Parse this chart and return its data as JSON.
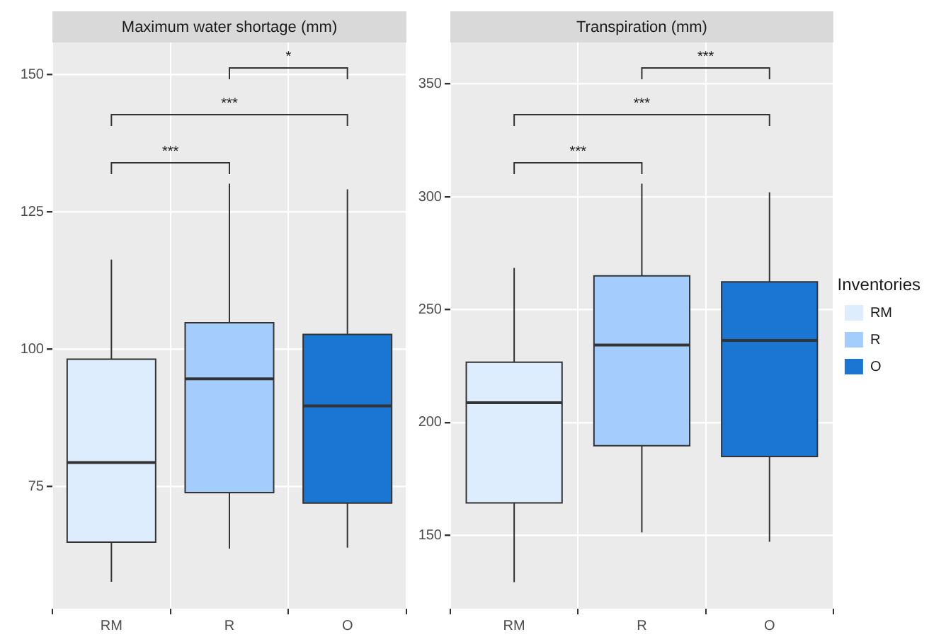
{
  "chart_data": [
    {
      "type": "box",
      "title": "Maximum water shortage (mm)",
      "categories": [
        "RM",
        "R",
        "O"
      ],
      "series": [
        {
          "color": "#ddedfd",
          "boxes": [
            {
              "low": 57.7,
              "q1": 64.9,
              "median": 79.4,
              "q3": 98.2,
              "high": 116.3
            },
            null,
            null
          ]
        },
        {
          "color": "#a4cdfd",
          "boxes": [
            null,
            {
              "low": 63.7,
              "q1": 73.9,
              "median": 94.6,
              "q3": 104.8,
              "high": 130.1
            },
            null
          ]
        },
        {
          "color": "#1b75d2",
          "boxes": [
            null,
            null,
            {
              "low": 63.9,
              "q1": 72,
              "median": 89.7,
              "q3": 102.7,
              "high": 129.1
            }
          ]
        }
      ],
      "ylim": [
        52.8,
        155.8
      ],
      "yticks": [
        75,
        100,
        125,
        150
      ],
      "grid": true,
      "annotations": [
        "*",
        "***",
        "***"
      ]
    },
    {
      "type": "box",
      "title": "Transpiration (mm)",
      "categories": [
        "RM",
        "R",
        "O"
      ],
      "series": [
        {
          "name": "RM",
          "color": "#ddedfd",
          "boxes": [
            {
              "low": 129.3,
              "q1": 164.4,
              "median": 208.8,
              "q3": 226.7,
              "high": 268.5
            },
            null,
            null
          ]
        },
        {
          "name": "R",
          "color": "#a4cdfd",
          "boxes": [
            null,
            {
              "low": 151.3,
              "q1": 189.7,
              "median": 234.3,
              "q3": 265,
              "high": 305.8
            },
            null
          ]
        },
        {
          "name": "O",
          "color": "#1b75d2",
          "boxes": [
            null,
            null,
            {
              "low": 147.1,
              "q1": 184.9,
              "median": 236.4,
              "q3": 262.3,
              "high": 302
            }
          ]
        }
      ],
      "ylim": [
        117.5,
        368.4
      ],
      "yticks": [
        150,
        200,
        250,
        300,
        350
      ],
      "grid": true,
      "annotations": [
        "***",
        "***",
        "***"
      ],
      "legend": "right",
      "legend_title": "Inventories"
    }
  ]
}
